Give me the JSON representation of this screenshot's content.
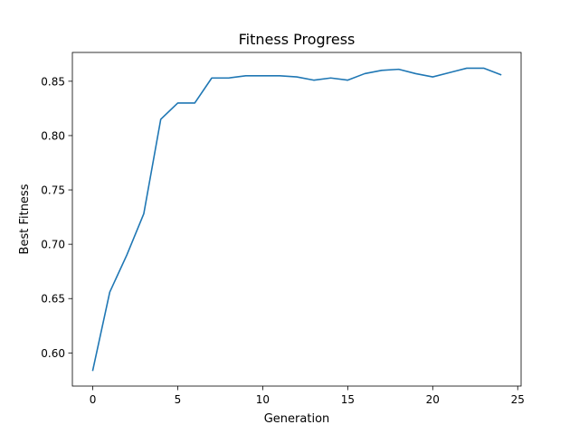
{
  "chart_data": {
    "type": "line",
    "title": "Fitness Progress",
    "xlabel": "Generation",
    "ylabel": "Best Fitness",
    "xlim": [
      -1.2,
      25.2
    ],
    "ylim": [
      0.5695,
      0.8765
    ],
    "xticks": [
      0,
      5,
      10,
      15,
      20,
      25
    ],
    "xtick_labels": [
      "0",
      "5",
      "10",
      "15",
      "20",
      "25"
    ],
    "yticks": [
      0.6,
      0.65,
      0.7,
      0.75,
      0.8,
      0.85
    ],
    "ytick_labels": [
      "0.60",
      "0.65",
      "0.70",
      "0.75",
      "0.80",
      "0.85"
    ],
    "grid": false,
    "series": [
      {
        "color": "#1f77b4",
        "x": [
          0,
          1,
          2,
          3,
          4,
          5,
          6,
          7,
          8,
          9,
          10,
          11,
          12,
          13,
          14,
          15,
          16,
          17,
          18,
          19,
          20,
          21,
          22,
          23,
          24
        ],
        "values": [
          0.584,
          0.656,
          0.69,
          0.728,
          0.815,
          0.83,
          0.83,
          0.853,
          0.853,
          0.855,
          0.855,
          0.855,
          0.854,
          0.851,
          0.853,
          0.851,
          0.857,
          0.86,
          0.861,
          0.857,
          0.854,
          0.858,
          0.862,
          0.862,
          0.856
        ]
      }
    ]
  }
}
